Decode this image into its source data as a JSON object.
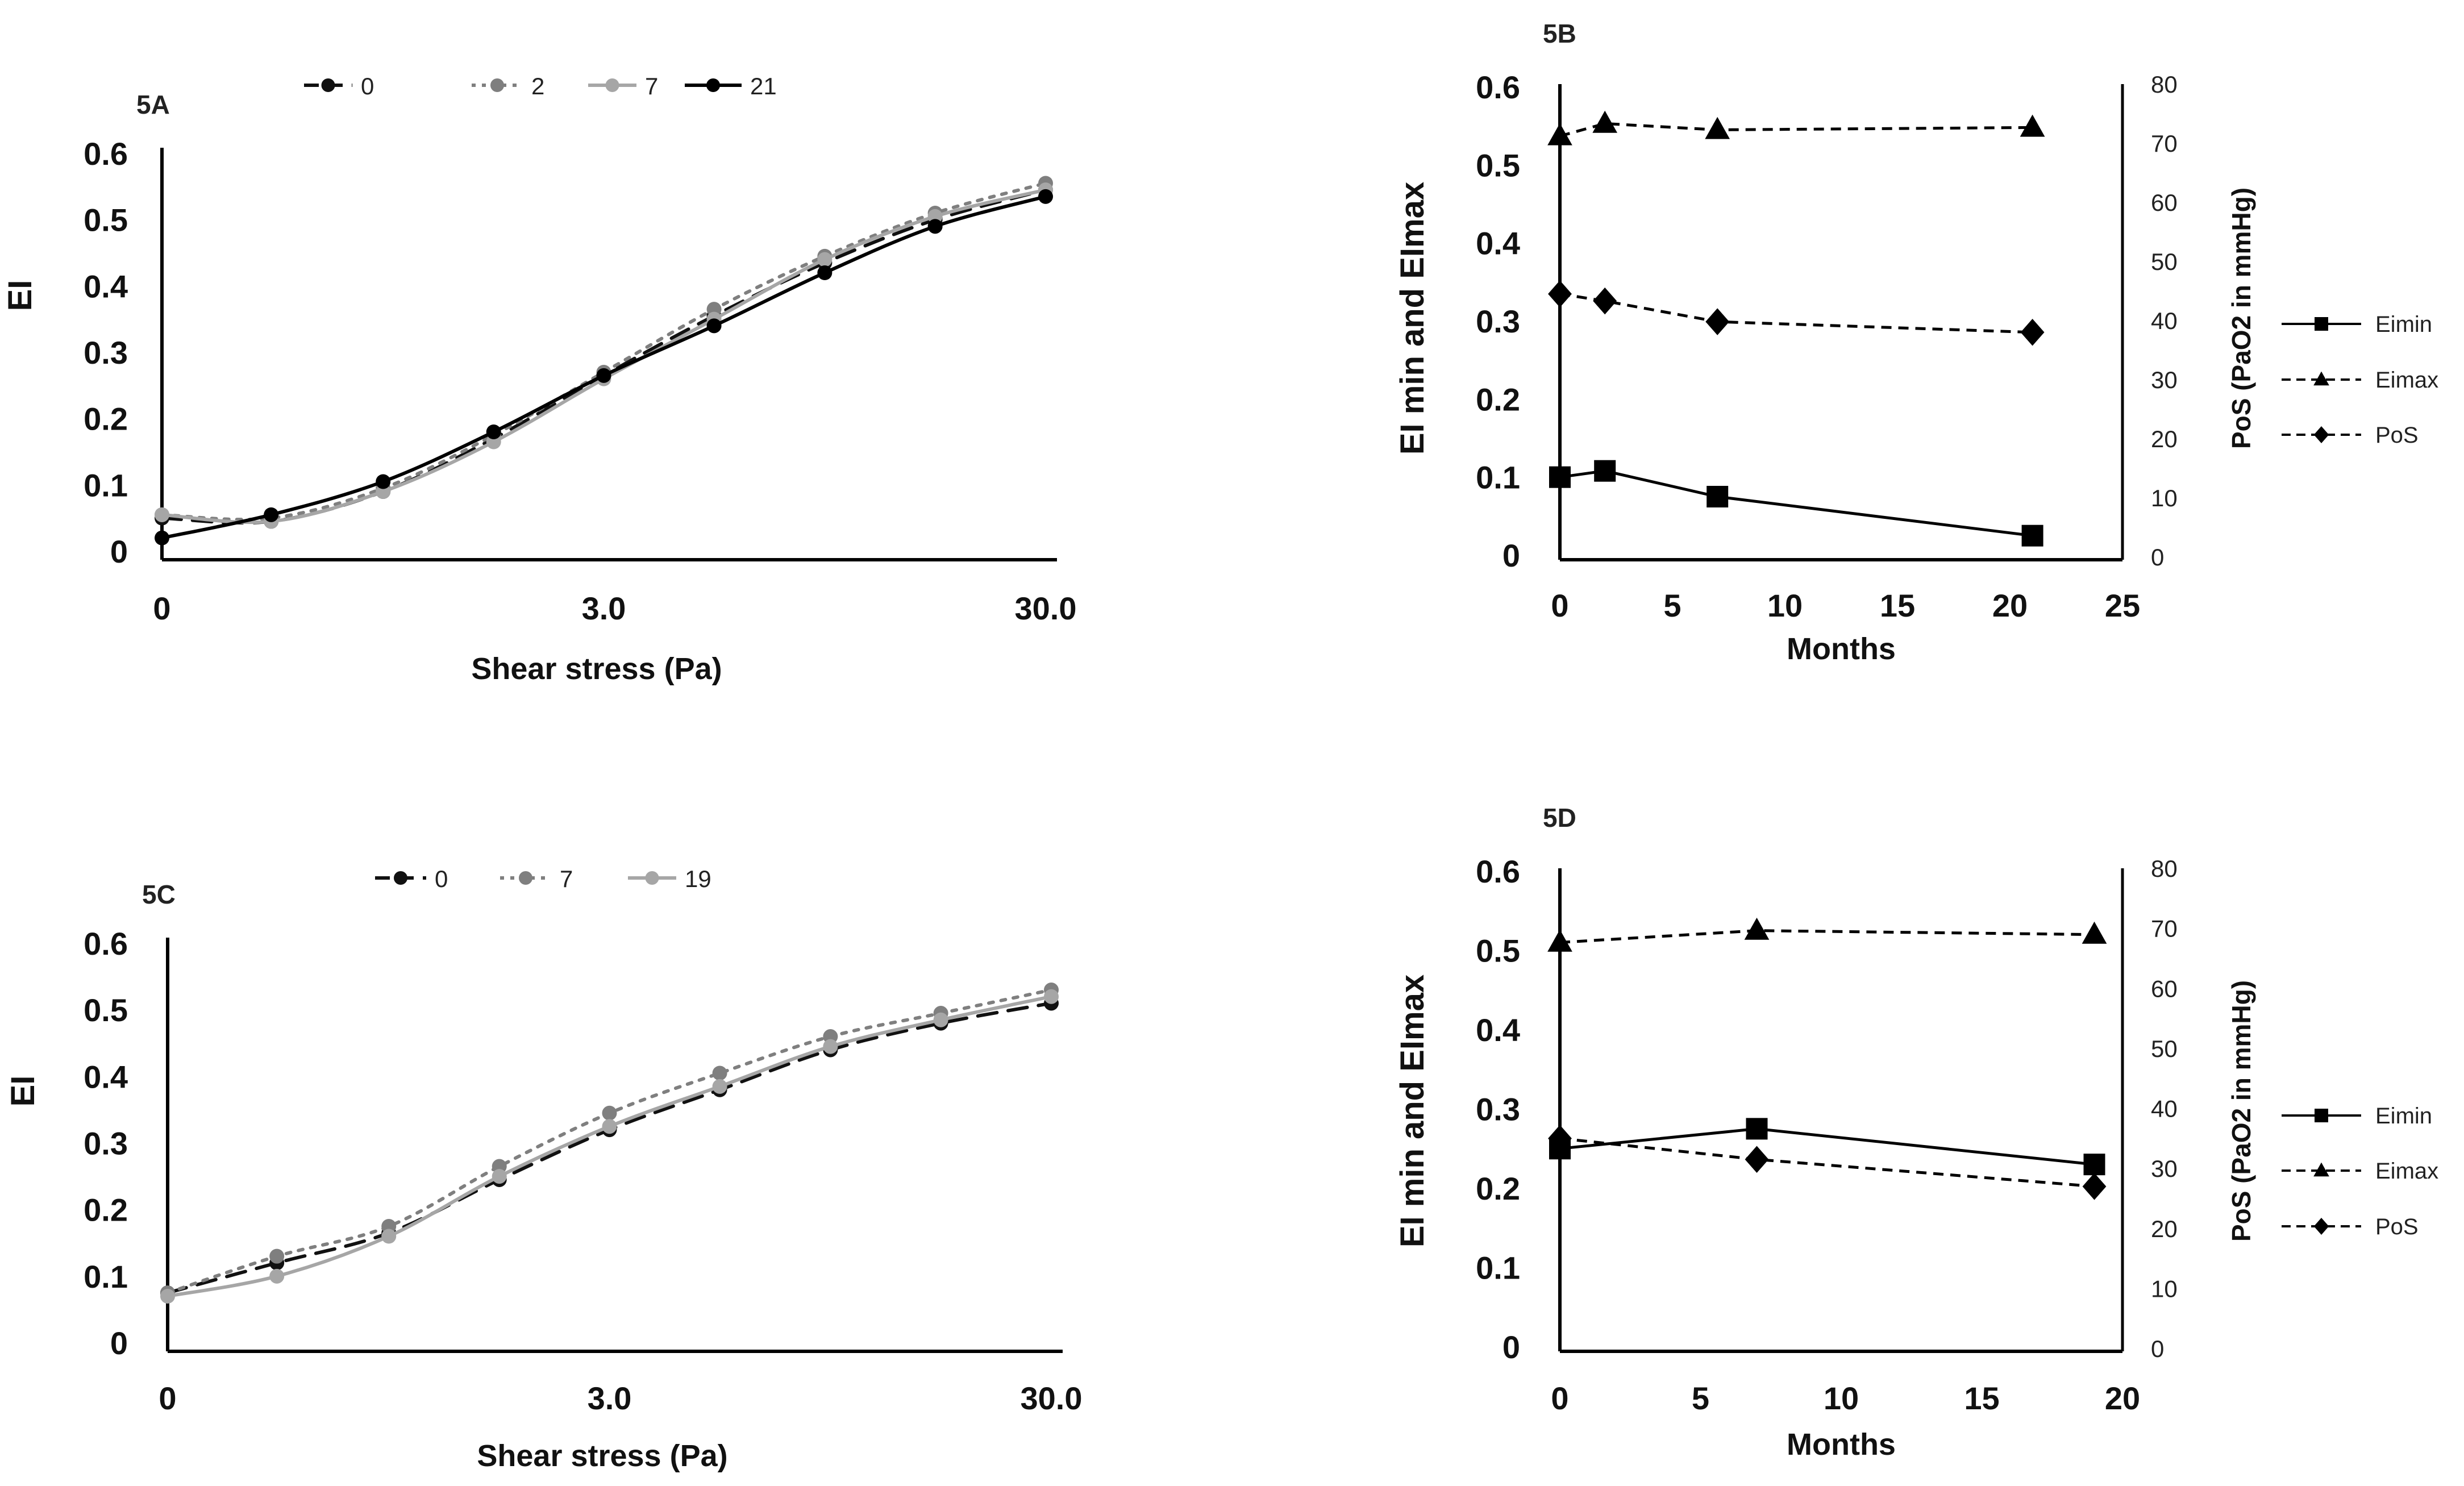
{
  "chart_data": [
    {
      "panel": "5A",
      "type": "line",
      "title": "5A",
      "xlabel": "Shear stress (Pa)",
      "ylabel": "EI",
      "x_scale": "log",
      "x_ticks": [
        "0",
        "3.0",
        "30.0"
      ],
      "y_ticks": [
        "0",
        "0.1",
        "0.2",
        "0.3",
        "0.4",
        "0.5",
        "0.6"
      ],
      "ylim": [
        0,
        0.6
      ],
      "x_positions": [
        0.3,
        0.53,
        0.95,
        1.69,
        3.0,
        5.33,
        9.49,
        16.87,
        30.0
      ],
      "series": [
        {
          "name": "0",
          "values": [
            0.05,
            0.045,
            0.09,
            0.17,
            0.265,
            0.355,
            0.435,
            0.5,
            0.545
          ],
          "color": "#111111",
          "dash": "dash",
          "marker": "dot"
        },
        {
          "name": "2",
          "values": [
            0.055,
            0.05,
            0.095,
            0.175,
            0.27,
            0.365,
            0.445,
            0.51,
            0.555
          ],
          "color": "#7f7f7f",
          "dash": "dot",
          "marker": "dot"
        },
        {
          "name": "7",
          "values": [
            0.055,
            0.045,
            0.09,
            0.165,
            0.26,
            0.35,
            0.44,
            0.505,
            0.545
          ],
          "color": "#a6a6a6",
          "dash": "solid",
          "marker": "dot"
        },
        {
          "name": "21",
          "values": [
            0.02,
            0.055,
            0.105,
            0.18,
            0.265,
            0.34,
            0.42,
            0.49,
            0.535
          ],
          "color": "#000000",
          "dash": "solid",
          "marker": "dot"
        }
      ]
    },
    {
      "panel": "5B",
      "type": "line",
      "title": "5B",
      "xlabel": "Months",
      "ylabel": "EI min and EImax",
      "y2label": "PoS (PaO2 in mmHg)",
      "x_ticks": [
        "0",
        "5",
        "10",
        "15",
        "20",
        "25"
      ],
      "xlim": [
        0,
        25
      ],
      "y_ticks": [
        "0",
        "0.1",
        "0.2",
        "0.3",
        "0.4",
        "0.5",
        "0.6"
      ],
      "ylim": [
        0,
        0.6
      ],
      "y2_ticks": [
        "0",
        "10",
        "20",
        "30",
        "40",
        "50",
        "60",
        "70",
        "80"
      ],
      "y2lim": [
        0,
        80
      ],
      "x": [
        0,
        2,
        7,
        21
      ],
      "series": [
        {
          "name": "Eimin",
          "values": [
            0.1,
            0.108,
            0.075,
            0.025
          ],
          "axis": "left",
          "dash": "solid",
          "marker": "square"
        },
        {
          "name": "Eimax",
          "values": [
            0.537,
            0.553,
            0.545,
            0.548
          ],
          "axis": "left",
          "dash": "dash",
          "marker": "triangle"
        },
        {
          "name": "PoS",
          "values": [
            44.5,
            43.3,
            39.8,
            38
          ],
          "axis": "right",
          "dash": "dash",
          "marker": "diamond"
        }
      ]
    },
    {
      "panel": "5C",
      "type": "line",
      "title": "5C",
      "xlabel": "Shear stress (Pa)",
      "ylabel": "EI",
      "x_scale": "log",
      "x_ticks": [
        "0",
        "3.0",
        "30.0"
      ],
      "y_ticks": [
        "0",
        "0.1",
        "0.2",
        "0.3",
        "0.4",
        "0.5",
        "0.6"
      ],
      "ylim": [
        0,
        0.6
      ],
      "x_positions": [
        0.3,
        0.53,
        0.95,
        1.69,
        3.0,
        5.33,
        9.49,
        16.87,
        30.0
      ],
      "series": [
        {
          "name": "0",
          "values": [
            0.075,
            0.12,
            0.165,
            0.245,
            0.32,
            0.38,
            0.44,
            0.48,
            0.51
          ],
          "color": "#111111",
          "dash": "dash",
          "marker": "dot"
        },
        {
          "name": "7",
          "values": [
            0.075,
            0.13,
            0.175,
            0.265,
            0.345,
            0.405,
            0.46,
            0.495,
            0.53
          ],
          "color": "#7f7f7f",
          "dash": "dot",
          "marker": "dot"
        },
        {
          "name": "19",
          "values": [
            0.07,
            0.1,
            0.16,
            0.25,
            0.325,
            0.385,
            0.445,
            0.485,
            0.52
          ],
          "color": "#a6a6a6",
          "dash": "solid",
          "marker": "dot"
        }
      ]
    },
    {
      "panel": "5D",
      "type": "line",
      "title": "5D",
      "xlabel": "Months",
      "ylabel": "EI min and EImax",
      "y2label": "PoS (PaO2 in mmHg)",
      "x_ticks": [
        "0",
        "5",
        "10",
        "15",
        "20"
      ],
      "xlim": [
        0,
        20
      ],
      "y_ticks": [
        "0",
        "0.1",
        "0.2",
        "0.3",
        "0.4",
        "0.5",
        "0.6"
      ],
      "ylim": [
        0,
        0.6
      ],
      "y2_ticks": [
        "0",
        "10",
        "20",
        "30",
        "40",
        "50",
        "60",
        "70",
        "80"
      ],
      "y2lim": [
        0,
        80
      ],
      "x": [
        0,
        7,
        19
      ],
      "series": [
        {
          "name": "Eimin",
          "values": [
            0.25,
            0.275,
            0.23
          ],
          "axis": "left",
          "dash": "solid",
          "marker": "square"
        },
        {
          "name": "Eimax",
          "values": [
            0.51,
            0.525,
            0.52
          ],
          "axis": "left",
          "dash": "dash",
          "marker": "triangle"
        },
        {
          "name": "PoS",
          "values": [
            35,
            31.5,
            27
          ],
          "axis": "right",
          "dash": "dash",
          "marker": "diamond"
        }
      ]
    }
  ]
}
